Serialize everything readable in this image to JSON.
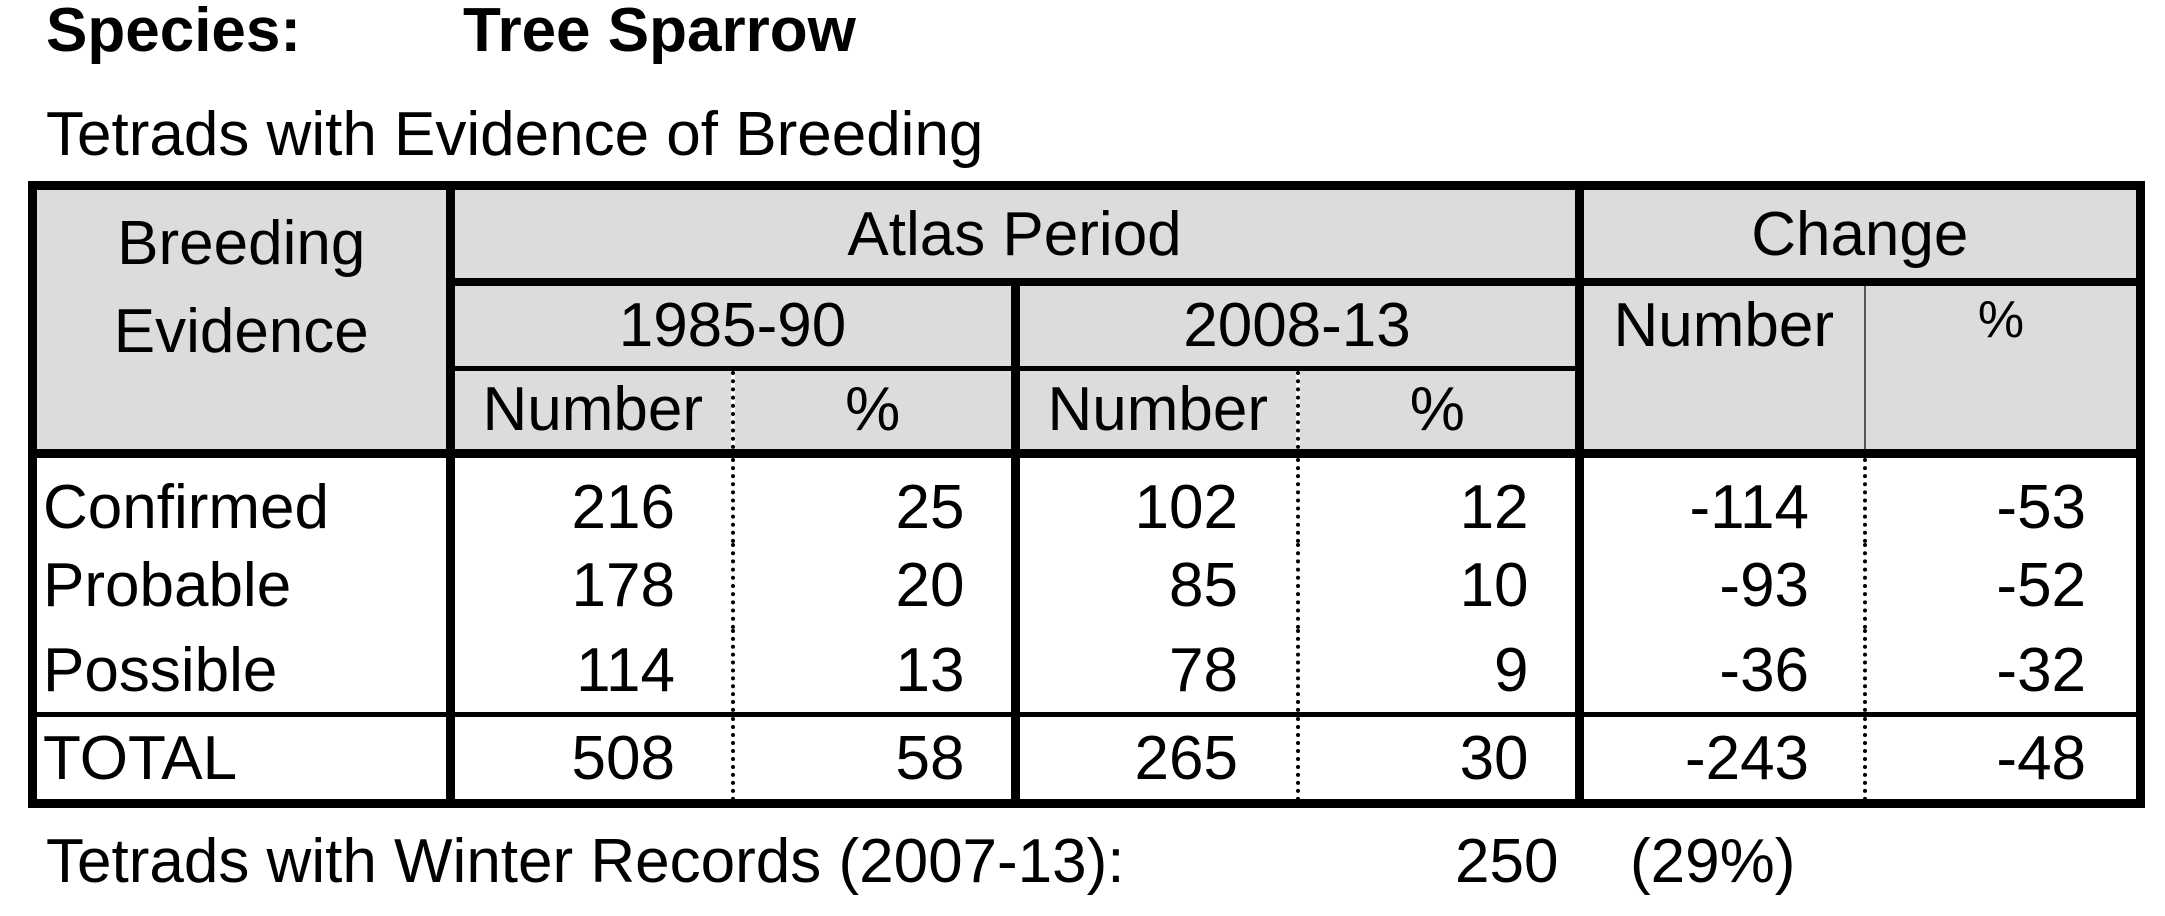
{
  "header": {
    "species_label": "Species:",
    "species_name": "Tree Sparrow",
    "subtitle": "Tetrads with Evidence of Breeding"
  },
  "table": {
    "col_header": {
      "evidence_line1": "Breeding",
      "evidence_line2": "Evidence",
      "atlas_period": "Atlas Period",
      "change": "Change",
      "period_1": "1985-90",
      "period_2": "2008-13",
      "number": "Number",
      "percent": "%"
    },
    "rows": [
      {
        "label": "Confirmed",
        "n1": "216",
        "p1": "25",
        "n2": "102",
        "p2": "12",
        "cn": "-114",
        "cp": "-53"
      },
      {
        "label": "Probable",
        "n1": "178",
        "p1": "20",
        "n2": "85",
        "p2": "10",
        "cn": "-93",
        "cp": "-52"
      },
      {
        "label": "Possible",
        "n1": "114",
        "p1": "13",
        "n2": "78",
        "p2": "9",
        "cn": "-36",
        "cp": "-32"
      }
    ],
    "total": {
      "label": "TOTAL",
      "n1": "508",
      "p1": "58",
      "n2": "265",
      "p2": "30",
      "cn": "-243",
      "cp": "-48"
    }
  },
  "footer": {
    "label": "Tetrads with Winter Records (2007-13):",
    "count": "250",
    "percent": "(29%)"
  }
}
